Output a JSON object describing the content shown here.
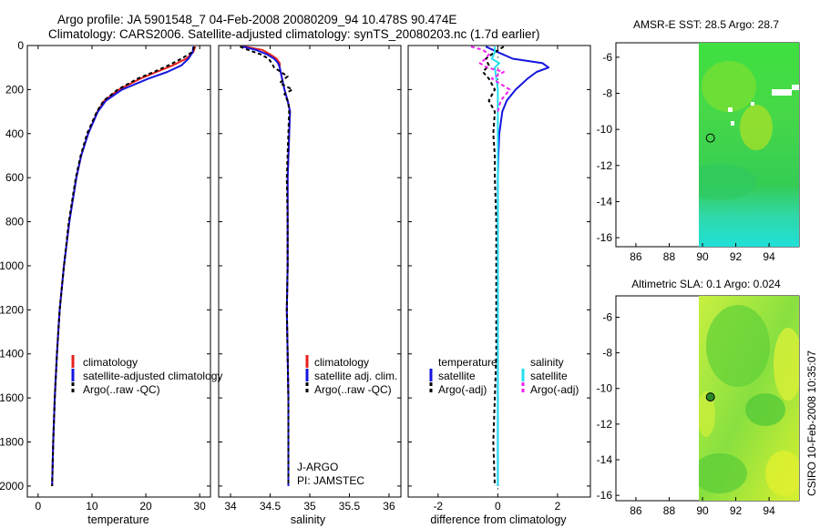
{
  "title_line1": "Argo profile: JA 5901548_7 04-Feb-2008 20080209_94 10.478S 90.474E",
  "title_line2": "Climatology: CARS2006. Satellite-adjusted climatology: synTS_20080203.nc (1.7d earlier)",
  "side_label": "CSIRO 10-Feb-2008 10:35:07",
  "colors": {
    "climatology": "#e8201c",
    "satellite": "#1515e0",
    "argo": "#000000",
    "salinity_satellite": "#22e0f0",
    "salinity_argo": "#f020f0"
  },
  "chart_data": [
    {
      "type": "line",
      "name": "temperature",
      "xlabel": "temperature",
      "xlim": [
        -2,
        32
      ],
      "ylim": [
        0,
        2050
      ],
      "y_reversed": true,
      "xticks": [
        0,
        10,
        20,
        30
      ],
      "xtick_labels": [
        "0",
        "10",
        "20",
        "30"
      ],
      "yticks": [
        0,
        200,
        400,
        600,
        800,
        1000,
        1200,
        1400,
        1600,
        1800,
        2000
      ],
      "ytick_labels": [
        "0",
        "200",
        "400",
        "600",
        "800",
        "1000",
        "1200",
        "1400",
        "1600",
        "1800",
        "2000"
      ],
      "series": [
        {
          "name": "climatology",
          "color": "#e8201c",
          "dash": "",
          "depth": [
            5,
            30,
            60,
            90,
            120,
            150,
            200,
            250,
            300,
            400,
            500,
            600,
            800,
            1000,
            1200,
            1400,
            1600,
            1800,
            2000
          ],
          "values": [
            29.2,
            28.8,
            27.5,
            25.0,
            22.0,
            19.0,
            15.0,
            12.3,
            11.0,
            9.3,
            8.0,
            7.1,
            5.8,
            4.8,
            4.0,
            3.5,
            3.1,
            2.8,
            2.6
          ]
        },
        {
          "name": "satellite-adjusted climatology",
          "color": "#1515e0",
          "dash": "",
          "depth": [
            5,
            30,
            60,
            90,
            120,
            150,
            200,
            250,
            300,
            400,
            500,
            600,
            800,
            1000,
            1200,
            1400,
            1600,
            1800,
            2000
          ],
          "values": [
            28.8,
            28.7,
            27.9,
            26.6,
            24.0,
            20.5,
            15.6,
            12.6,
            11.1,
            9.3,
            8.0,
            7.1,
            5.8,
            4.8,
            4.0,
            3.5,
            3.1,
            2.8,
            2.6
          ]
        },
        {
          "name": "Argo(..raw -QC)",
          "color": "#000000",
          "dash": "4,3",
          "depth": [
            5,
            30,
            60,
            90,
            120,
            150,
            200,
            250,
            300,
            400,
            500,
            600,
            800,
            1000,
            1200,
            1400,
            1600,
            1800,
            2000
          ],
          "values": [
            29.0,
            28.6,
            26.6,
            24.2,
            21.5,
            18.5,
            14.8,
            12.2,
            10.9,
            9.1,
            7.9,
            7.0,
            5.7,
            4.8,
            4.0,
            3.5,
            3.1,
            2.8,
            2.6
          ]
        }
      ],
      "legend": [
        "climatology",
        "satellite-adjusted climatology",
        "Argo(..raw -QC)"
      ]
    },
    {
      "type": "line",
      "name": "salinity",
      "xlabel": "salinity",
      "xlim": [
        33.85,
        36.15
      ],
      "ylim": [
        0,
        2050
      ],
      "y_reversed": true,
      "xticks": [
        34,
        34.5,
        35,
        35.5,
        36
      ],
      "xtick_labels": [
        "34",
        "34.5",
        "35",
        "35.5",
        "36"
      ],
      "series": [
        {
          "name": "climatology",
          "color": "#e8201c",
          "dash": "",
          "depth": [
            5,
            20,
            40,
            60,
            80,
            100,
            150,
            200,
            250,
            300,
            400,
            600,
            800,
            1000,
            1200,
            1400,
            1600,
            1800,
            2000
          ],
          "values": [
            34.18,
            34.4,
            34.5,
            34.58,
            34.62,
            34.62,
            34.65,
            34.68,
            34.72,
            34.75,
            34.74,
            34.72,
            34.72,
            34.72,
            34.71,
            34.72,
            34.73,
            34.73,
            34.73
          ]
        },
        {
          "name": "satellite adj. clim.",
          "color": "#1515e0",
          "dash": "",
          "depth": [
            5,
            20,
            40,
            60,
            80,
            100,
            150,
            200,
            250,
            300,
            400,
            600,
            800,
            1000,
            1200,
            1400,
            1600,
            1800,
            2000
          ],
          "values": [
            34.15,
            34.32,
            34.46,
            34.55,
            34.6,
            34.62,
            34.65,
            34.68,
            34.72,
            34.75,
            34.74,
            34.72,
            34.72,
            34.72,
            34.71,
            34.72,
            34.73,
            34.73,
            34.73
          ]
        },
        {
          "name": "Argo(..raw -QC)",
          "color": "#000000",
          "dash": "4,3",
          "depth": [
            5,
            20,
            40,
            60,
            80,
            100,
            140,
            170,
            200,
            220,
            260,
            300,
            400,
            600,
            800,
            1000,
            1200,
            1400,
            1600,
            1800,
            2000
          ],
          "values": [
            34.12,
            34.22,
            34.38,
            34.48,
            34.52,
            34.55,
            34.72,
            34.62,
            34.78,
            34.68,
            34.73,
            34.74,
            34.73,
            34.71,
            34.72,
            34.72,
            34.71,
            34.72,
            34.73,
            34.73,
            34.73
          ]
        }
      ],
      "legend": [
        "climatology",
        "satellite adj. clim.",
        "Argo(..raw -QC)"
      ],
      "annotation": [
        "J-ARGO",
        "PI: JAMSTEC"
      ]
    },
    {
      "type": "line",
      "name": "difference",
      "xlabel": "difference from climatology",
      "xlim": [
        -3,
        3.1
      ],
      "ylim": [
        0,
        2050
      ],
      "y_reversed": true,
      "xticks": [
        -2,
        0,
        2
      ],
      "xtick_labels": [
        "-2",
        "0",
        "2"
      ],
      "series": [
        {
          "name": "temperature satellite",
          "color": "#1515e0",
          "dash": "",
          "depth": [
            5,
            30,
            60,
            80,
            100,
            120,
            150,
            200,
            250,
            300,
            400,
            500,
            600,
            800,
            1000,
            1200,
            1400,
            1600,
            1800,
            2000
          ],
          "values": [
            -0.4,
            0.0,
            0.5,
            1.5,
            1.7,
            1.3,
            1.0,
            0.6,
            0.3,
            0.15,
            0.05,
            0.02,
            0.0,
            0.0,
            0.0,
            0.0,
            0.0,
            0.0,
            0.0,
            0.0
          ]
        },
        {
          "name": "temperature Argo(-adj)",
          "color": "#000000",
          "dash": "4,3",
          "depth": [
            5,
            30,
            60,
            90,
            120,
            150,
            200,
            250,
            300,
            400,
            500,
            600,
            800,
            1000,
            1200,
            1400,
            1600,
            1800,
            2000
          ],
          "values": [
            0.2,
            -0.1,
            -0.4,
            -0.3,
            -0.5,
            -0.3,
            -0.1,
            -0.3,
            -0.1,
            -0.15,
            -0.1,
            -0.1,
            -0.05,
            -0.05,
            -0.05,
            -0.05,
            -0.1,
            -0.15,
            -0.1
          ]
        },
        {
          "name": "salinity satellite",
          "color": "#22e0f0",
          "dash": "",
          "depth": [
            5,
            30,
            60,
            80,
            100,
            150,
            200,
            300,
            400,
            600,
            800,
            1000,
            1200,
            1400,
            1600,
            1800,
            2000
          ],
          "values": [
            -0.1,
            -0.1,
            -0.2,
            0.05,
            -0.1,
            -0.05,
            0.0,
            0.0,
            0.0,
            0.0,
            0.0,
            0.0,
            0.0,
            0.0,
            0.0,
            0.0,
            0.0
          ]
        },
        {
          "name": "salinity Argo(-adj)",
          "color": "#f020f0",
          "dash": "4,3",
          "depth": [
            5,
            20,
            40,
            60,
            80,
            100,
            120,
            150,
            200,
            250,
            300
          ],
          "values": [
            -0.9,
            -0.5,
            -0.3,
            -0.4,
            -0.6,
            -0.35,
            0.2,
            -0.2,
            0.4,
            0.1,
            0.0
          ]
        }
      ],
      "legend_headers": [
        "temperature",
        "salinity"
      ],
      "legend": [
        "satellite",
        "Argo(-adj)",
        "satellite",
        "Argo(-adj)"
      ]
    },
    {
      "type": "heatmap",
      "name": "AMSR-E SST",
      "title": "AMSR-E SST: 28.5 Argo: 28.7",
      "xlim": [
        84.8,
        95.8
      ],
      "ylim": [
        -16.5,
        -5.2
      ],
      "xticks": [
        86,
        88,
        90,
        92,
        94
      ],
      "yticks": [
        -6,
        -8,
        -10,
        -12,
        -14,
        -16
      ],
      "argo_location": [
        90.474,
        -10.478
      ]
    },
    {
      "type": "heatmap",
      "name": "Altimetric SLA",
      "title": "Altimetric SLA: 0.1 Argo: 0.024",
      "xlim": [
        84.8,
        95.8
      ],
      "ylim": [
        -16.3,
        -4.8
      ],
      "xticks": [
        86,
        88,
        90,
        92,
        94
      ],
      "yticks": [
        -6,
        -8,
        -10,
        -12,
        -14,
        -16
      ],
      "argo_location": [
        90.474,
        -10.478
      ]
    }
  ]
}
